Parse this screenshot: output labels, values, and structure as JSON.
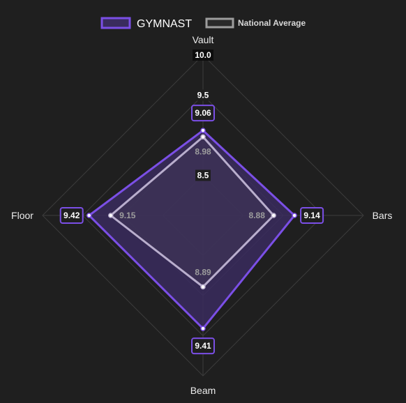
{
  "chart_data": {
    "type": "radar",
    "axes": [
      "Vault",
      "Bars",
      "Beam",
      "Floor"
    ],
    "rlim": [
      8.0,
      10.0
    ],
    "ticks": [
      "8.5",
      "9.5",
      "10.0"
    ],
    "series": [
      {
        "name": "GYMNAST",
        "values": [
          9.06,
          9.14,
          9.41,
          9.42
        ],
        "labels": [
          "9.06",
          "9.14",
          "9.41",
          "9.42"
        ],
        "color": "#7b4fe6"
      },
      {
        "name": "National Average",
        "values": [
          8.98,
          8.88,
          8.89,
          9.15
        ],
        "labels": [
          "8.98",
          "8.88",
          "8.89",
          "9.15"
        ],
        "color": "#b9aecd"
      }
    ],
    "legend_position": "top",
    "grid": true
  },
  "colors": {
    "background": "#1f1f1f",
    "grid": "#3c3c3c",
    "gymnast_fill": "#3a2c5e",
    "avg_fill": "#3f3656"
  }
}
